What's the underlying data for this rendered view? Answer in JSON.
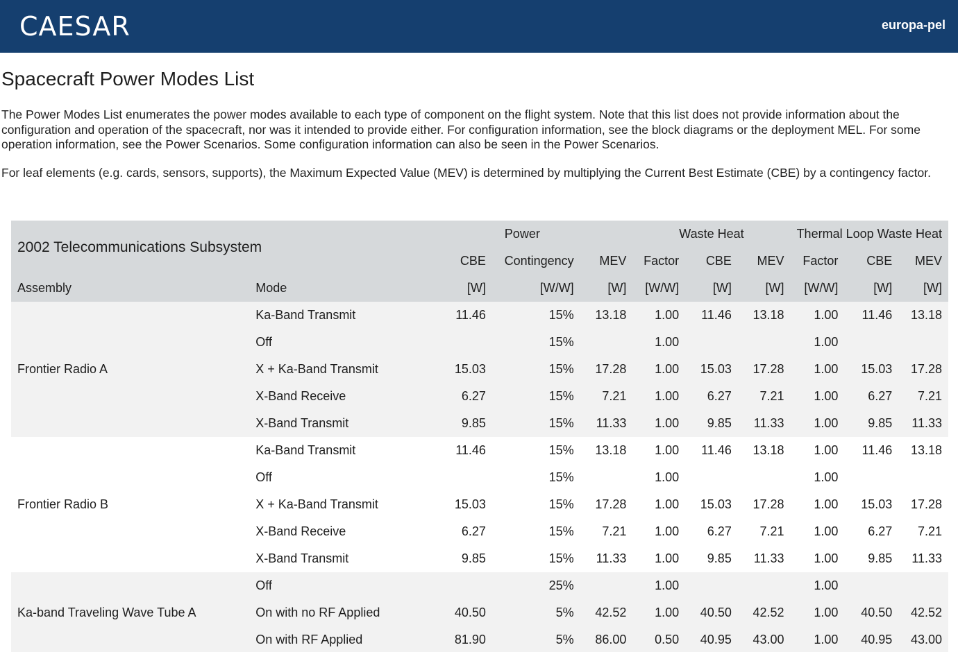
{
  "header": {
    "logo_text": "CAESAR",
    "project": "europa-pel"
  },
  "page": {
    "title": "Spacecraft Power Modes List",
    "paragraph1": "The Power Modes List enumerates the power modes available to each type of component on the flight system. Note that this list does not provide information about the configuration and operation of the spacecraft, nor was it intended to provide either. For configuration information, see the block diagrams or the deployment MEL. For some operation information, see the Power Scenarios. Some configuration information can also be seen in the Power Scenarios.",
    "paragraph2": "For leaf elements (e.g. cards, sensors, supports), the Maximum Expected Value (MEV) is determined by multiplying the Current Best Estimate (CBE) by a contingency factor."
  },
  "table": {
    "subsystem": "2002 Telecommunications Subsystem",
    "groups": {
      "power": "Power",
      "waste_heat": "Waste Heat",
      "thermal": "Thermal Loop Waste Heat"
    },
    "sub_headers": [
      "CBE",
      "Contingency",
      "MEV",
      "Factor",
      "CBE",
      "MEV",
      "Factor",
      "CBE",
      "MEV"
    ],
    "assembly_header": "Assembly",
    "mode_header": "Mode",
    "units": [
      "[W]",
      "[W/W]",
      "[W]",
      "[W/W]",
      "[W]",
      "[W]",
      "[W/W]",
      "[W]",
      "[W]"
    ],
    "assemblies": [
      {
        "name": "Frontier Radio A",
        "rows": [
          {
            "mode": "Ka-Band Transmit",
            "vals": [
              "11.46",
              "15%",
              "13.18",
              "1.00",
              "11.46",
              "13.18",
              "1.00",
              "11.46",
              "13.18"
            ]
          },
          {
            "mode": "Off",
            "vals": [
              "",
              "15%",
              "",
              "1.00",
              "",
              "",
              "1.00",
              "",
              ""
            ]
          },
          {
            "mode": "X + Ka-Band Transmit",
            "vals": [
              "15.03",
              "15%",
              "17.28",
              "1.00",
              "15.03",
              "17.28",
              "1.00",
              "15.03",
              "17.28"
            ]
          },
          {
            "mode": "X-Band Receive",
            "vals": [
              "6.27",
              "15%",
              "7.21",
              "1.00",
              "6.27",
              "7.21",
              "1.00",
              "6.27",
              "7.21"
            ]
          },
          {
            "mode": "X-Band Transmit",
            "vals": [
              "9.85",
              "15%",
              "11.33",
              "1.00",
              "9.85",
              "11.33",
              "1.00",
              "9.85",
              "11.33"
            ]
          }
        ]
      },
      {
        "name": "Frontier Radio B",
        "rows": [
          {
            "mode": "Ka-Band Transmit",
            "vals": [
              "11.46",
              "15%",
              "13.18",
              "1.00",
              "11.46",
              "13.18",
              "1.00",
              "11.46",
              "13.18"
            ]
          },
          {
            "mode": "Off",
            "vals": [
              "",
              "15%",
              "",
              "1.00",
              "",
              "",
              "1.00",
              "",
              ""
            ]
          },
          {
            "mode": "X + Ka-Band Transmit",
            "vals": [
              "15.03",
              "15%",
              "17.28",
              "1.00",
              "15.03",
              "17.28",
              "1.00",
              "15.03",
              "17.28"
            ]
          },
          {
            "mode": "X-Band Receive",
            "vals": [
              "6.27",
              "15%",
              "7.21",
              "1.00",
              "6.27",
              "7.21",
              "1.00",
              "6.27",
              "7.21"
            ]
          },
          {
            "mode": "X-Band Transmit",
            "vals": [
              "9.85",
              "15%",
              "11.33",
              "1.00",
              "9.85",
              "11.33",
              "1.00",
              "9.85",
              "11.33"
            ]
          }
        ]
      },
      {
        "name": "Ka-band Traveling Wave Tube A",
        "rows": [
          {
            "mode": "Off",
            "vals": [
              "",
              "25%",
              "",
              "1.00",
              "",
              "",
              "1.00",
              "",
              ""
            ]
          },
          {
            "mode": "On with no RF Applied",
            "vals": [
              "40.50",
              "5%",
              "42.52",
              "1.00",
              "40.50",
              "42.52",
              "1.00",
              "40.50",
              "42.52"
            ]
          },
          {
            "mode": "On with RF Applied",
            "vals": [
              "81.90",
              "5%",
              "86.00",
              "0.50",
              "40.95",
              "43.00",
              "1.00",
              "40.95",
              "43.00"
            ]
          }
        ]
      }
    ]
  }
}
